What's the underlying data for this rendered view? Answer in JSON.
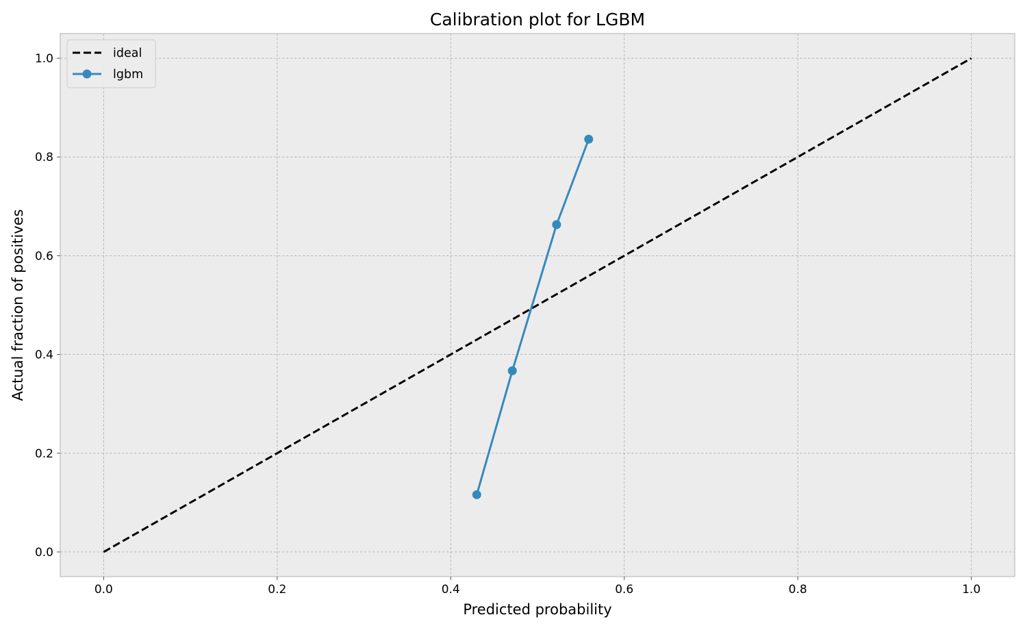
{
  "chart_data": {
    "type": "line",
    "title": "Calibration plot for LGBM",
    "xlabel": "Predicted probability",
    "ylabel": "Actual fraction of positives",
    "xlim": [
      -0.05,
      1.05
    ],
    "ylim": [
      -0.05,
      1.05
    ],
    "xticks": [
      0.0,
      0.2,
      0.4,
      0.6,
      0.8,
      1.0
    ],
    "yticks": [
      0.0,
      0.2,
      0.4,
      0.6,
      0.8,
      1.0
    ],
    "xtick_labels": [
      "0.0",
      "0.2",
      "0.4",
      "0.6",
      "0.8",
      "1.0"
    ],
    "ytick_labels": [
      "0.0",
      "0.2",
      "0.4",
      "0.6",
      "0.8",
      "1.0"
    ],
    "grid": true,
    "legend_position": "top-left",
    "background_color": "#ececec",
    "series": [
      {
        "name": "ideal",
        "style": "dashed",
        "color": "#000000",
        "markers": false,
        "x": [
          0.0,
          1.0
        ],
        "y": [
          0.0,
          1.0
        ]
      },
      {
        "name": "lgbm",
        "style": "solid",
        "color": "#348abd",
        "markers": true,
        "x": [
          0.43,
          0.471,
          0.522,
          0.559
        ],
        "y": [
          0.116,
          0.367,
          0.663,
          0.836
        ]
      }
    ]
  }
}
